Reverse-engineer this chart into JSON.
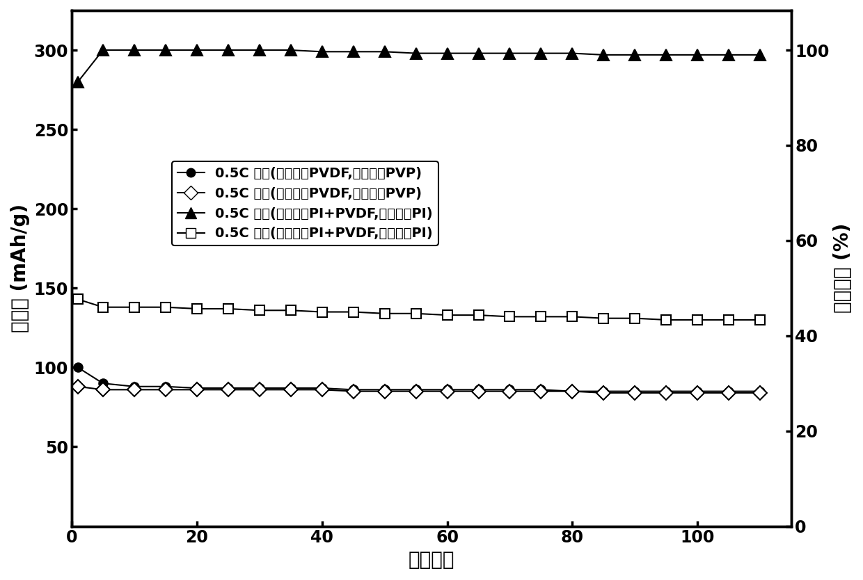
{
  "title": "",
  "xlabel": "循环次数",
  "ylabel_left": "比容量 (mAh/g)",
  "ylabel_right": "库伦效率 (%)",
  "xlim": [
    0,
    115
  ],
  "ylim_left": [
    0,
    325
  ],
  "xticks": [
    0,
    20,
    40,
    60,
    80,
    100
  ],
  "yticks_left": [
    50,
    100,
    150,
    200,
    250,
    300
  ],
  "yticks_right": [
    0,
    20,
    40,
    60,
    80,
    100
  ],
  "legend_labels": [
    "0.5C 充电(粘结剂：PVDF,稳定剂：PVP)",
    "0.5C 放电(粘结剂：PVDF,稳定剂：PVP)",
    "0.5C 充电(粘结剂：PI+PVDF,稳定剂：PI)",
    "0.5C 放电(粘结剂：PI+PVDF,稳定剂：PI)"
  ],
  "series": {
    "charge_PVDF": {
      "marker": "o",
      "markersize": 9,
      "markerfacecolor": "#000000",
      "markeredgecolor": "#000000",
      "x": [
        1,
        5,
        10,
        15,
        20,
        25,
        30,
        35,
        40,
        45,
        50,
        55,
        60,
        65,
        70,
        75,
        80,
        85,
        90,
        95,
        100,
        105,
        110
      ],
      "y": [
        100,
        90,
        88,
        88,
        87,
        87,
        87,
        87,
        87,
        86,
        86,
        86,
        86,
        86,
        86,
        86,
        85,
        85,
        85,
        85,
        85,
        85,
        85
      ]
    },
    "discharge_PVDF": {
      "marker": "D",
      "markersize": 10,
      "markerfacecolor": "#ffffff",
      "markeredgecolor": "#000000",
      "x": [
        1,
        5,
        10,
        15,
        20,
        25,
        30,
        35,
        40,
        45,
        50,
        55,
        60,
        65,
        70,
        75,
        80,
        85,
        90,
        95,
        100,
        105,
        110
      ],
      "y": [
        88,
        86,
        86,
        86,
        86,
        86,
        86,
        86,
        86,
        85,
        85,
        85,
        85,
        85,
        85,
        85,
        85,
        84,
        84,
        84,
        84,
        84,
        84
      ]
    },
    "charge_PI": {
      "marker": "^",
      "markersize": 11,
      "markerfacecolor": "#000000",
      "markeredgecolor": "#000000",
      "x": [
        1,
        5,
        10,
        15,
        20,
        25,
        30,
        35,
        40,
        45,
        50,
        55,
        60,
        65,
        70,
        75,
        80,
        85,
        90,
        95,
        100,
        105,
        110
      ],
      "y": [
        280,
        300,
        300,
        300,
        300,
        300,
        300,
        300,
        299,
        299,
        299,
        298,
        298,
        298,
        298,
        298,
        298,
        297,
        297,
        297,
        297,
        297,
        297
      ]
    },
    "discharge_PI": {
      "marker": "s",
      "markersize": 10,
      "markerfacecolor": "#ffffff",
      "markeredgecolor": "#000000",
      "x": [
        1,
        5,
        10,
        15,
        20,
        25,
        30,
        35,
        40,
        45,
        50,
        55,
        60,
        65,
        70,
        75,
        80,
        85,
        90,
        95,
        100,
        105,
        110
      ],
      "y": [
        143,
        138,
        138,
        138,
        137,
        137,
        136,
        136,
        135,
        135,
        134,
        134,
        133,
        133,
        132,
        132,
        132,
        131,
        131,
        130,
        130,
        130,
        130
      ]
    }
  },
  "background_color": "#ffffff",
  "linewidth": 1.5,
  "font_size_label": 20,
  "font_size_tick": 17,
  "font_size_legend": 14
}
